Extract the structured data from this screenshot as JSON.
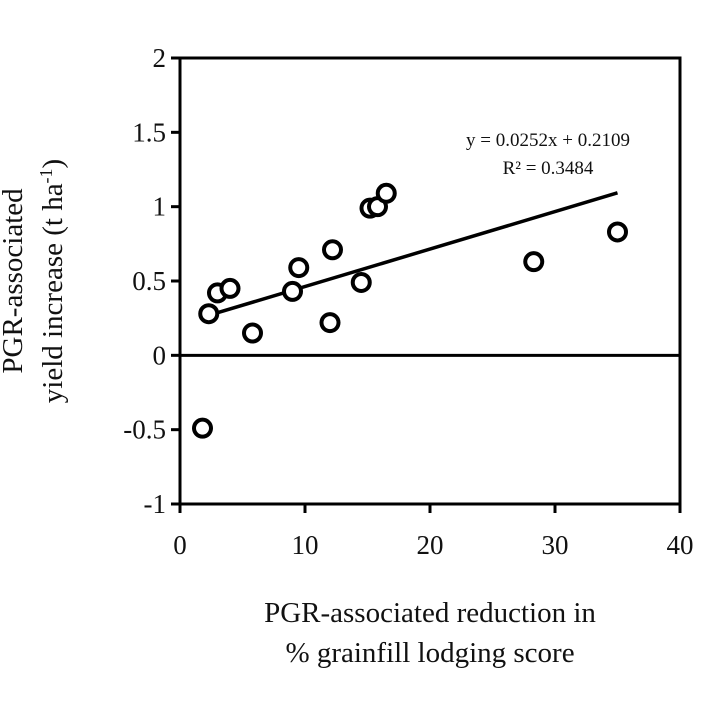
{
  "chart_data": {
    "type": "scatter",
    "xlabel": [
      "PGR-associated reduction in",
      "% grainfill lodging score"
    ],
    "ylabel": {
      "line1": "PGR-associated",
      "line2_main": "yield increase (t ha",
      "line2_sup": "-1",
      "line2_end": ")"
    },
    "xlim": [
      0,
      40
    ],
    "ylim": [
      -1,
      2
    ],
    "x_ticks": [
      0,
      10,
      20,
      30,
      40
    ],
    "y_ticks": [
      2,
      1.5,
      1,
      0.5,
      0,
      -0.5,
      -1
    ],
    "y_tick_labels": [
      "2",
      "1.5",
      "1",
      "0.5",
      "0",
      "-0.5",
      "-1"
    ],
    "x_tick_labels": [
      "0",
      "10",
      "20",
      "30",
      "40"
    ],
    "grid": false,
    "zero_line": true,
    "points": [
      {
        "x": 1.8,
        "y": -0.49
      },
      {
        "x": 2.3,
        "y": 0.28
      },
      {
        "x": 3.0,
        "y": 0.42
      },
      {
        "x": 4.0,
        "y": 0.45
      },
      {
        "x": 5.8,
        "y": 0.15
      },
      {
        "x": 9.0,
        "y": 0.43
      },
      {
        "x": 9.5,
        "y": 0.59
      },
      {
        "x": 12.0,
        "y": 0.22
      },
      {
        "x": 12.2,
        "y": 0.71
      },
      {
        "x": 14.5,
        "y": 0.49
      },
      {
        "x": 15.2,
        "y": 0.99
      },
      {
        "x": 15.8,
        "y": 1.0
      },
      {
        "x": 16.5,
        "y": 1.09
      },
      {
        "x": 28.3,
        "y": 0.63
      },
      {
        "x": 35.0,
        "y": 0.83
      }
    ],
    "trendline": {
      "slope": 0.0252,
      "intercept": 0.2109,
      "x_range": [
        2.3,
        35
      ],
      "equation": "y = 0.0252x + 0.2109",
      "r2_label": "R² = 0.3484"
    }
  }
}
